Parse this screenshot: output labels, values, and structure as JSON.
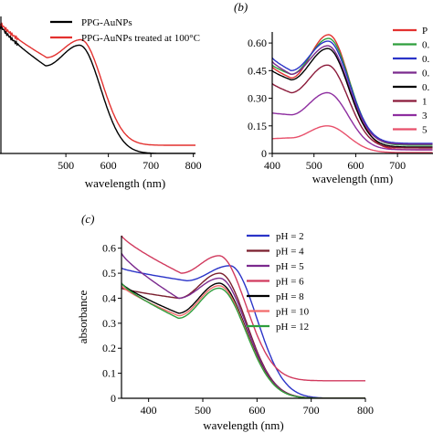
{
  "chart_data": [
    {
      "panel": "",
      "type": "line",
      "xlabel": "wavelength (nm)",
      "ylabel": "",
      "xlim": [
        345,
        805
      ],
      "ylim": [
        0,
        1.0
      ],
      "xticks": [
        500,
        600,
        700,
        800
      ],
      "xtick_labels": [
        "500",
        "600",
        "700",
        "800"
      ],
      "yticks": [],
      "grid": false,
      "legend_position": "top",
      "series": [
        {
          "name": "PPG-AuNPs",
          "color": "#000000",
          "peak_x": 532,
          "peak_y": 0.79,
          "left_x": 350,
          "left_y": 0.92,
          "valley_x": 452,
          "valley_y": 0.64,
          "end_x": 800,
          "end_y": 0.0
        },
        {
          "name": "PPG-AuNPs treated at 100°C",
          "color": "#e3312f",
          "peak_x": 535,
          "peak_y": 0.83,
          "left_x": 350,
          "left_y": 0.94,
          "valley_x": 455,
          "valley_y": 0.7,
          "end_x": 800,
          "end_y": 0.06
        }
      ]
    },
    {
      "panel": "(b)",
      "type": "line",
      "xlabel": "wavelength (nm)",
      "ylabel": "",
      "xlim": [
        400,
        785
      ],
      "ylim": [
        0,
        0.66
      ],
      "xticks": [
        400,
        500,
        600,
        700
      ],
      "xtick_labels": [
        "400",
        "500",
        "600",
        "700"
      ],
      "yticks": [
        0,
        0.15,
        0.3,
        0.45,
        0.6
      ],
      "ytick_labels": [
        "0",
        "0.15",
        "0.30",
        "0.45",
        "0.60"
      ],
      "grid": false,
      "legend_position": "top-right",
      "series": [
        {
          "name": "P",
          "color": "#e3312f",
          "peak_x": 535,
          "peak_y": 0.645,
          "left_x": 400,
          "left_y": 0.47,
          "valley_x": 445,
          "valley_y": 0.41,
          "end_x": 785,
          "end_y": 0.02
        },
        {
          "name": "0.",
          "color": "#2e9e3c",
          "peak_x": 535,
          "peak_y": 0.625,
          "left_x": 400,
          "left_y": 0.48,
          "valley_x": 445,
          "valley_y": 0.43,
          "end_x": 785,
          "end_y": 0.045
        },
        {
          "name": "0.",
          "color": "#2b34c8",
          "peak_x": 534,
          "peak_y": 0.61,
          "left_x": 400,
          "left_y": 0.52,
          "valley_x": 445,
          "valley_y": 0.45,
          "end_x": 785,
          "end_y": 0.055
        },
        {
          "name": "0.",
          "color": "#7b2a8e",
          "peak_x": 533,
          "peak_y": 0.585,
          "left_x": 400,
          "left_y": 0.5,
          "valley_x": 445,
          "valley_y": 0.43,
          "end_x": 785,
          "end_y": 0.05
        },
        {
          "name": "0.",
          "color": "#000000",
          "peak_x": 533,
          "peak_y": 0.57,
          "left_x": 400,
          "left_y": 0.45,
          "valley_x": 445,
          "valley_y": 0.4,
          "end_x": 785,
          "end_y": 0.035
        },
        {
          "name": "1",
          "color": "#8b1a3a",
          "peak_x": 532,
          "peak_y": 0.48,
          "left_x": 400,
          "left_y": 0.38,
          "valley_x": 445,
          "valley_y": 0.33,
          "end_x": 785,
          "end_y": 0.03
        },
        {
          "name": "3",
          "color": "#8e2ea0",
          "peak_x": 532,
          "peak_y": 0.33,
          "left_x": 400,
          "left_y": 0.22,
          "valley_x": 445,
          "valley_y": 0.21,
          "end_x": 785,
          "end_y": 0.02
        },
        {
          "name": "5",
          "color": "#e8506b",
          "peak_x": 532,
          "peak_y": 0.15,
          "left_x": 400,
          "left_y": 0.08,
          "valley_x": 445,
          "valley_y": 0.085,
          "end_x": 785,
          "end_y": 0.005
        }
      ]
    },
    {
      "panel": "(c)",
      "type": "line",
      "xlabel": "wavelength (nm)",
      "ylabel": "absorbance",
      "xlim": [
        350,
        800
      ],
      "ylim": [
        0,
        0.65
      ],
      "xticks": [
        400,
        500,
        600,
        700,
        800
      ],
      "xtick_labels": [
        "400",
        "500",
        "600",
        "700",
        "800"
      ],
      "yticks": [
        0,
        0.1,
        0.2,
        0.3,
        0.4,
        0.5,
        0.6
      ],
      "ytick_labels": [
        "0",
        "0.1",
        "0.2",
        "0.3",
        "0.4",
        "0.5",
        "0.6"
      ],
      "grid": false,
      "legend_position": "top-right",
      "series": [
        {
          "name": "pH = 2",
          "color": "#2b34c8",
          "peak_x": 550,
          "peak_y": 0.53,
          "left_x": 350,
          "left_y": 0.52,
          "valley_x": 470,
          "valley_y": 0.47,
          "end_x": 800,
          "end_y": 0.0
        },
        {
          "name": "pH = 4",
          "color": "#7a1f2e",
          "peak_x": 531,
          "peak_y": 0.5,
          "left_x": 350,
          "left_y": 0.44,
          "valley_x": 455,
          "valley_y": 0.4,
          "end_x": 800,
          "end_y": 0.0
        },
        {
          "name": "pH = 5",
          "color": "#7b2a8e",
          "peak_x": 531,
          "peak_y": 0.48,
          "left_x": 350,
          "left_y": 0.58,
          "valley_x": 455,
          "valley_y": 0.4,
          "end_x": 800,
          "end_y": 0.0
        },
        {
          "name": "pH = 6",
          "color": "#d13a5e",
          "peak_x": 530,
          "peak_y": 0.57,
          "left_x": 350,
          "left_y": 0.65,
          "valley_x": 460,
          "valley_y": 0.5,
          "end_x": 800,
          "end_y": 0.07
        },
        {
          "name": "pH = 8",
          "color": "#000000",
          "peak_x": 530,
          "peak_y": 0.46,
          "left_x": 350,
          "left_y": 0.46,
          "valley_x": 455,
          "valley_y": 0.34,
          "end_x": 800,
          "end_y": 0.0
        },
        {
          "name": "pH = 10",
          "color": "#f26b6b",
          "peak_x": 530,
          "peak_y": 0.45,
          "left_x": 350,
          "left_y": 0.45,
          "valley_x": 455,
          "valley_y": 0.33,
          "end_x": 800,
          "end_y": 0.0
        },
        {
          "name": "pH = 12",
          "color": "#2e9e3c",
          "peak_x": 530,
          "peak_y": 0.44,
          "left_x": 350,
          "left_y": 0.46,
          "valley_x": 455,
          "valley_y": 0.32,
          "end_x": 800,
          "end_y": 0.0
        }
      ]
    }
  ]
}
